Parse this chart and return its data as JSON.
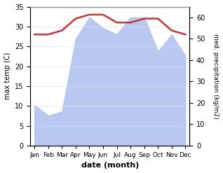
{
  "months": [
    "Jan",
    "Feb",
    "Mar",
    "Apr",
    "May",
    "Jun",
    "Jul",
    "Aug",
    "Sep",
    "Oct",
    "Nov",
    "Dec"
  ],
  "precipitation": [
    19,
    14,
    16,
    50,
    60,
    55,
    52,
    60,
    60,
    44,
    52,
    42
  ],
  "temperature": [
    28,
    28,
    29,
    32,
    33,
    33,
    31,
    31,
    32,
    32,
    29,
    28
  ],
  "temp_color": "#cc3333",
  "precip_fill_color": "#b8c8f0",
  "ylim_left": [
    0,
    35
  ],
  "ylim_right": [
    0,
    65
  ],
  "xlabel": "date (month)",
  "ylabel_left": "max temp (C)",
  "ylabel_right": "med. precipitation (kg/m2)",
  "bg_color": "#ffffff",
  "grid_color": "#e0e0e0",
  "yticks_left": [
    0,
    5,
    10,
    15,
    20,
    25,
    30,
    35
  ],
  "yticks_right": [
    0,
    10,
    20,
    30,
    40,
    50,
    60
  ]
}
